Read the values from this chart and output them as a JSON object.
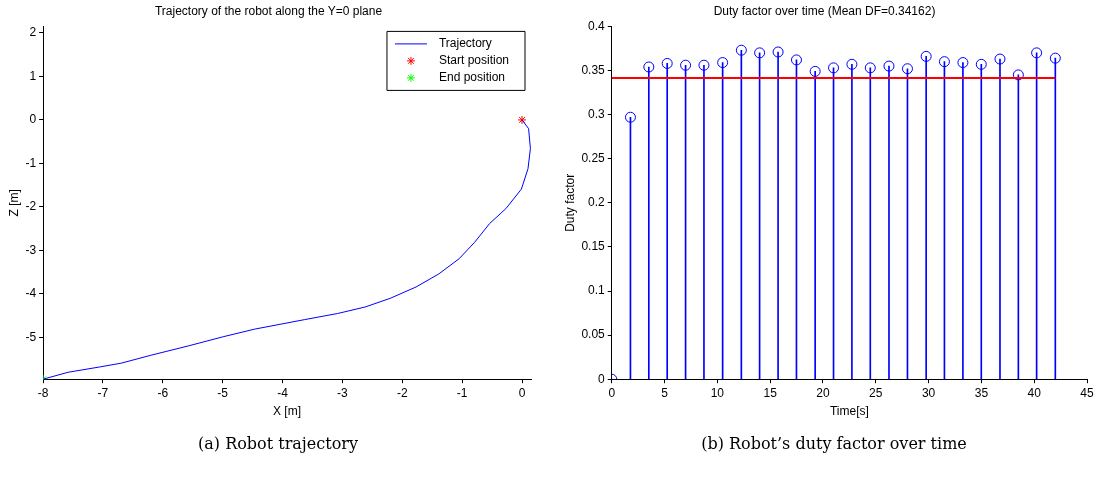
{
  "chart_data": [
    {
      "type": "line",
      "title": "Trajectory of the robot along the Y=0 plane",
      "xlabel": "X [m]",
      "ylabel": "Z [m]",
      "series": [
        {
          "name": "Trajectory",
          "color": "#0000ff",
          "marker": "none",
          "x": [
            0,
            0.11,
            0.14,
            0.1,
            -0.01,
            -0.27,
            -0.54,
            -0.79,
            -1.05,
            -1.39,
            -1.77,
            -2.2,
            -2.62,
            -3.08,
            -3.63,
            -4.47,
            -4.98,
            -5.56,
            -6.2,
            -6.69,
            -7.06,
            -7.58,
            -8
          ],
          "values": [
            0,
            -0.2,
            -0.66,
            -1.12,
            -1.59,
            -2.04,
            -2.38,
            -2.81,
            -3.19,
            -3.54,
            -3.84,
            -4.1,
            -4.3,
            -4.45,
            -4.59,
            -4.81,
            -4.98,
            -5.19,
            -5.41,
            -5.59,
            -5.68,
            -5.8,
            -5.96
          ]
        },
        {
          "name": "Start position",
          "type": "scatter",
          "color": "#ff0000",
          "marker": "cross",
          "x": [
            0
          ],
          "values": [
            0
          ]
        },
        {
          "name": "End position",
          "type": "scatter",
          "color": "#00ff00",
          "marker": "cross",
          "x": [
            -8
          ],
          "values": [
            -5.96
          ]
        }
      ],
      "xlim": [
        -8,
        0.15
      ],
      "ylim": [
        -5.96,
        2.15
      ],
      "xticks": [
        -8,
        -7,
        -6,
        -5,
        -4,
        -3,
        -2,
        -1,
        0
      ],
      "yticks": [
        -5,
        -4,
        -3,
        -2,
        -1,
        0,
        1,
        2
      ],
      "grid": false,
      "legend": "top right",
      "annotations": [
        "(a) Robot trajectory"
      ]
    },
    {
      "type": "lollipop",
      "title": "Duty factor over time (Mean DF=0.34162)",
      "xlabel": "Time[s]",
      "ylabel": "Duty factor",
      "x": [
        0,
        1.77,
        3.51,
        5.25,
        6.99,
        8.73,
        10.5,
        12.27,
        14.0,
        15.75,
        17.49,
        19.26,
        21.0,
        22.74,
        24.48,
        26.25,
        28.0,
        29.77,
        31.5,
        33.25,
        34.99,
        36.76,
        38.5,
        40.23,
        42.0
      ],
      "values": [
        0,
        0.297,
        0.354,
        0.358,
        0.356,
        0.356,
        0.359,
        0.373,
        0.37,
        0.371,
        0.362,
        0.349,
        0.353,
        0.357,
        0.353,
        0.355,
        0.352,
        0.366,
        0.36,
        0.359,
        0.357,
        0.363,
        0.345,
        0.37,
        0.364
      ],
      "color": "#0000ff",
      "marker": "circle",
      "ref_lines": [
        {
          "axis": "y",
          "value": 0.34162,
          "color": "#ff0000"
        }
      ],
      "xlim": [
        0,
        45
      ],
      "ylim": [
        0,
        0.4
      ],
      "xticks": [
        0,
        5,
        10,
        15,
        20,
        25,
        30,
        35,
        40,
        45
      ],
      "yticks": [
        0,
        0.05,
        0.1,
        0.15,
        0.2,
        0.25,
        0.3,
        0.35,
        0.4
      ],
      "grid": false,
      "annotations": [
        "(b) Robot’s duty factor over time"
      ]
    }
  ]
}
